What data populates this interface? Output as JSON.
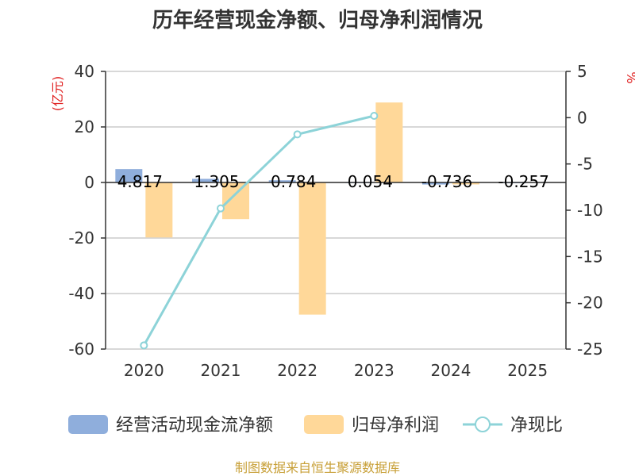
{
  "chart_data": {
    "type": "bar+line",
    "title": "历年经营现金净额、归母净利润情况",
    "categories": [
      "2020",
      "2021",
      "2022",
      "2023",
      "2024",
      "2025"
    ],
    "left_axis": {
      "unit": "(亿元)",
      "ticks": [
        40,
        20,
        0,
        -20,
        -40,
        -60
      ],
      "ylim": [
        -60,
        40
      ]
    },
    "right_axis": {
      "unit": "%",
      "ticks": [
        5,
        0,
        -5,
        -10,
        -15,
        -20,
        -25
      ],
      "ylim": [
        -25,
        5
      ]
    },
    "series": [
      {
        "name": "经营活动现金流净额",
        "type": "bar",
        "axis": "left",
        "color": "#8faedc",
        "values": [
          4.817,
          1.305,
          0.784,
          0.054,
          -0.736,
          -0.257
        ],
        "labels": [
          "4.817",
          "1.305",
          "0.784",
          "0.054",
          "-0.736",
          "-0.257"
        ]
      },
      {
        "name": "归母净利润",
        "type": "bar",
        "axis": "left",
        "color": "#ffd899",
        "values": [
          -19.8,
          -13.2,
          -47.6,
          28.8,
          -0.7,
          null
        ]
      },
      {
        "name": "净现比",
        "type": "line",
        "axis": "right",
        "color": "#8dd3d8",
        "values": [
          -24.6,
          -9.8,
          -1.8,
          0.2,
          null,
          null
        ]
      }
    ],
    "grid": true,
    "legend": "bottom"
  },
  "source": "制图数据来自恒生聚源数据库"
}
